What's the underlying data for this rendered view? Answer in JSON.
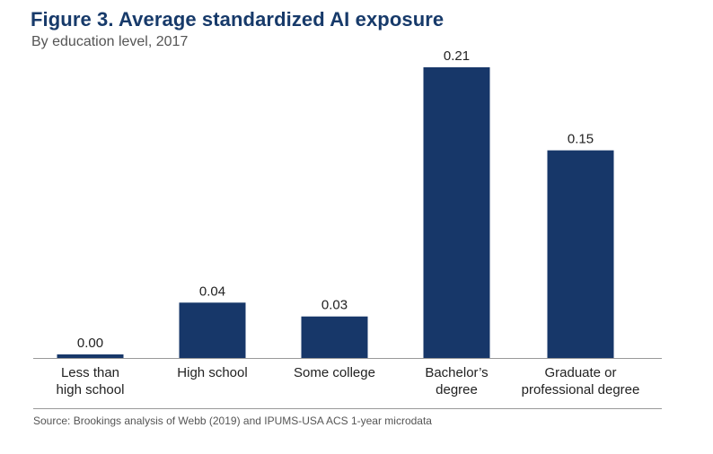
{
  "header": {
    "title": "Figure 3. Average standardized AI exposure",
    "subtitle": "By education level, 2017"
  },
  "footer": {
    "source": "Source: Brookings analysis of Webb (2019) and IPUMS-USA ACS 1-year microdata"
  },
  "colors": {
    "bar": "#173769",
    "title": "#173a6a",
    "axis": "#999999",
    "text": "#222222"
  },
  "chart_data": {
    "type": "bar",
    "title": "Figure 3. Average standardized AI exposure",
    "subtitle": "By education level, 2017",
    "xlabel": "",
    "ylabel": "",
    "categories": [
      [
        "Less than",
        "high school"
      ],
      [
        "High school"
      ],
      [
        "Some college"
      ],
      [
        "Bachelor’s",
        "degree"
      ],
      [
        "Graduate or",
        "professional degree"
      ]
    ],
    "values": [
      0.0,
      0.04,
      0.03,
      0.21,
      0.15
    ],
    "value_labels": [
      "0.00",
      "0.04",
      "0.03",
      "0.21",
      "0.15"
    ],
    "ylim": [
      0,
      0.21
    ],
    "grid": false,
    "legend": "none"
  }
}
